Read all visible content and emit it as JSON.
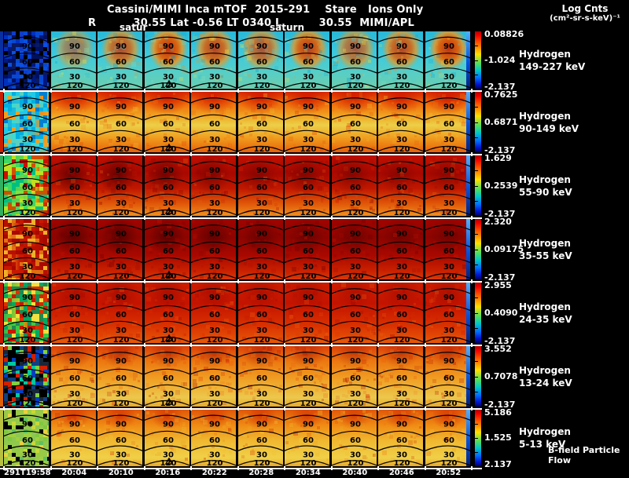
{
  "header": {
    "title": "Cassini/MIMI Inca mTOF  2015-291    Stare   Ions Only",
    "subtitle": "R          30.55 Lat -0.56 LT 0340 L          30.55  MIMI/APL",
    "units_line1": "Log Cnts",
    "units_line2": "(cm²-sr-s-keV)⁻¹"
  },
  "annotations": {
    "saturn_partial": "satur",
    "saturn_full": "saturn",
    "bfield_flow": "B-field Particle Flow",
    "marker": "▵"
  },
  "contour_labels": [
    "90",
    "60",
    "30",
    "120"
  ],
  "rows": [
    {
      "species": "Hydrogen",
      "energy": "149-227 keV",
      "cb_top": "0.08826",
      "cb_mid": "-1.024",
      "cb_bot": "-2.137"
    },
    {
      "species": "Hydrogen",
      "energy": "90-149 keV",
      "cb_top": "0.7625",
      "cb_mid": "0.6871",
      "cb_bot": "-2.137"
    },
    {
      "species": "Hydrogen",
      "energy": "55-90 keV",
      "cb_top": "1.629",
      "cb_mid": "0.2539",
      "cb_bot": "-2.137"
    },
    {
      "species": "Hydrogen",
      "energy": "35-55 keV",
      "cb_top": "2.320",
      "cb_mid": "0.09175",
      "cb_bot": "-2.137"
    },
    {
      "species": "Hydrogen",
      "energy": "24-35 keV",
      "cb_top": "2.955",
      "cb_mid": "0.4090",
      "cb_bot": "-2.137"
    },
    {
      "species": "Hydrogen",
      "energy": "13-24 keV",
      "cb_top": "3.552",
      "cb_mid": "0.7078",
      "cb_bot": "-2.137"
    },
    {
      "species": "Hydrogen",
      "energy": "5-13 keV",
      "cb_top": "5.186",
      "cb_mid": "1.525",
      "cb_bot": "2.137"
    }
  ],
  "time_axis": [
    "291T19:58",
    "20:04",
    "20:10",
    "20:16",
    "20:22",
    "20:28",
    "20:34",
    "20:40",
    "20:46",
    "20:52"
  ],
  "colors": {
    "background": "#000000",
    "text": "#ffffff",
    "contour": "#000000",
    "colorbar_top": "#b00000",
    "colorbar_bottom": "#000060"
  },
  "chart_data": {
    "type": "heatmap",
    "title": "Cassini/MIMI Inca mTOF 2015-291 Stare Ions Only",
    "subtitle": "R 30.55 Lat -0.56 LT 0340 L 30.55 MIMI/APL",
    "colorbar_label": "Log Cnts (cm²-sr-s-keV)⁻¹",
    "grid": {
      "rows": 7,
      "cols": 10
    },
    "x_ticks": [
      "291T19:58",
      "20:04",
      "20:10",
      "20:16",
      "20:22",
      "20:28",
      "20:34",
      "20:40",
      "20:46",
      "20:52"
    ],
    "contour_angles_deg": [
      30,
      60,
      90,
      120
    ],
    "channels": [
      {
        "label": "Hydrogen 149-227 keV",
        "scale_top": 0.08826,
        "scale_mid": -1.024,
        "scale_bot": -2.137
      },
      {
        "label": "Hydrogen 90-149 keV",
        "scale_top": 0.7625,
        "scale_mid": 0.6871,
        "scale_bot": -2.137
      },
      {
        "label": "Hydrogen 55-90 keV",
        "scale_top": 1.629,
        "scale_mid": 0.2539,
        "scale_bot": -2.137
      },
      {
        "label": "Hydrogen 35-55 keV",
        "scale_top": 2.32,
        "scale_mid": 0.09175,
        "scale_bot": -2.137
      },
      {
        "label": "Hydrogen 24-35 keV",
        "scale_top": 2.955,
        "scale_mid": 0.409,
        "scale_bot": -2.137
      },
      {
        "label": "Hydrogen 13-24 keV",
        "scale_top": 3.552,
        "scale_mid": 0.7078,
        "scale_bot": -2.137
      },
      {
        "label": "Hydrogen 5-13 keV",
        "scale_top": 5.186,
        "scale_mid": 1.525,
        "scale_bot": 2.137
      }
    ],
    "legend_position": "right",
    "annotations": [
      "satur",
      "saturn",
      "B-field Particle Flow"
    ]
  }
}
